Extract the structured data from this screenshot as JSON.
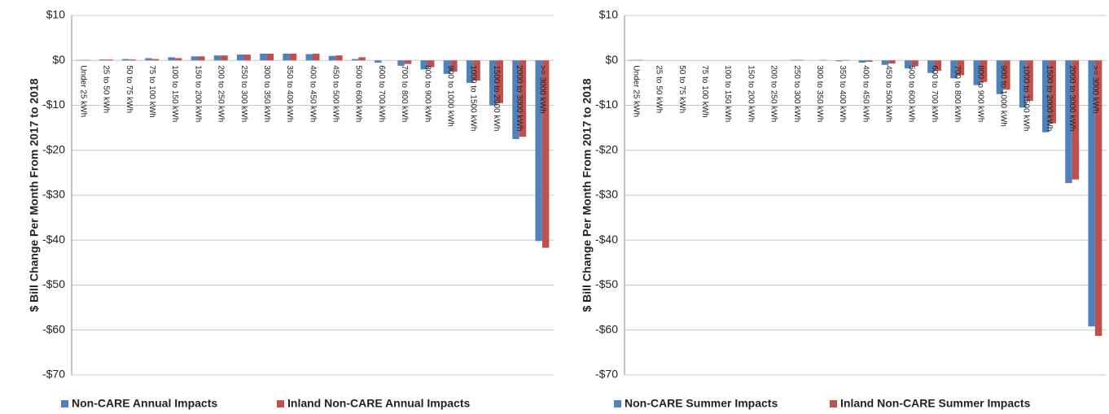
{
  "chart_data": [
    {
      "type": "bar",
      "y_label": "$ Bill  Change Per Month From 2017 to 2018",
      "categories": [
        "Under 25 kWh",
        "25 to 50 kWh",
        "50 to 75 kWh",
        "75 to 100 kWh",
        "100 to 150 kWh",
        "150 to 200 kWh",
        "200 to 250 kWh",
        "250 to 300 kWh",
        "300 to 350 kWh",
        "350 to 400 kWh",
        "400 to 450 kWh",
        "450 to 500 kWh",
        "500 to 600 kWh",
        "600 to 700 kWh",
        "700 to 800 kWh",
        "800 to 900 kWh",
        "900 to 1000 kWh",
        "1000 to 1500 kWh",
        "1500 to 2000 kWh",
        "2000 to 3000 kWh",
        ">= 3000 kWh"
      ],
      "series": [
        {
          "name": "Non-CARE Annual Impacts",
          "color": "#4f81bd",
          "values": [
            0.1,
            0.2,
            0.3,
            0.5,
            0.7,
            0.9,
            1.1,
            1.3,
            1.5,
            1.5,
            1.4,
            1.0,
            0.3,
            -0.5,
            -1.2,
            -2.0,
            -3.0,
            -5.0,
            -10.0,
            -17.5,
            -40.2
          ]
        },
        {
          "name": "Inland Non-CARE Annual Impacts",
          "color": "#c0504d",
          "values": [
            0.1,
            0.2,
            0.2,
            0.3,
            0.5,
            0.9,
            1.1,
            1.3,
            1.5,
            1.5,
            1.5,
            1.1,
            0.7,
            0,
            -0.8,
            -1.5,
            -2.5,
            -4.5,
            -9.5,
            -17.0,
            -41.7
          ]
        }
      ],
      "ylim": [
        -70,
        10
      ],
      "yticks": [
        {
          "value": 10,
          "label": "$10"
        },
        {
          "value": 0,
          "label": "$0"
        },
        {
          "value": -10,
          "label": "-$10"
        },
        {
          "value": -20,
          "label": "-$20"
        },
        {
          "value": -30,
          "label": "-$30"
        },
        {
          "value": -40,
          "label": "-$40"
        },
        {
          "value": -50,
          "label": "-$50"
        },
        {
          "value": -60,
          "label": "-$60"
        },
        {
          "value": -70,
          "label": "-$70"
        }
      ],
      "grid": true,
      "legend": "bottom"
    },
    {
      "type": "bar",
      "y_label": "$ Bill  Change Per Month From 2017 to 2018",
      "categories": [
        "Under 25 kWh",
        "25 to 50 kWh",
        "50 to 75 kWh",
        "75 to 100 kWh",
        "100 to 150 kWh",
        "150 to 200 kWh",
        "200 to 250 kWh",
        "250 to 300 kWh",
        "300 to 350 kWh",
        "350 to 400 kWh",
        "400 to 450 kWh",
        "450 to 500 kWh",
        "500 to 600 kWh",
        "600 to 700 kWh",
        "700 to 800 kWh",
        "800 to 900 kWh",
        "900 to 1000 kWh",
        "1000 to 1500 kWh",
        "1500 to 2000 kWh",
        "2000 to 3000 kWh",
        ">= 3000 kWh"
      ],
      "series": [
        {
          "name": "Non-CARE Summer Impacts",
          "color": "#4f81bd",
          "values": [
            0.1,
            0,
            0,
            0,
            0,
            0,
            0,
            0.1,
            0,
            -0.2,
            -0.5,
            -1.0,
            -1.8,
            -2.8,
            -4.0,
            -5.5,
            -7.5,
            -10.5,
            -16.0,
            -27.3,
            -59.2
          ]
        },
        {
          "name": "Inland Non-CARE Summer Impacts",
          "color": "#c0504d",
          "values": [
            0.1,
            0,
            0,
            0,
            0,
            0,
            0,
            0.1,
            0.1,
            0.1,
            -0.3,
            -0.7,
            -1.3,
            -2.3,
            -3.3,
            -4.8,
            -6.5,
            -9.0,
            -14.0,
            -26.5,
            -61.3
          ]
        }
      ],
      "ylim": [
        -70,
        10
      ],
      "yticks": [
        {
          "value": 10,
          "label": "$10"
        },
        {
          "value": 0,
          "label": "$0"
        },
        {
          "value": -10,
          "label": "-$10"
        },
        {
          "value": -20,
          "label": "-$20"
        },
        {
          "value": -30,
          "label": "-$30"
        },
        {
          "value": -40,
          "label": "-$40"
        },
        {
          "value": -50,
          "label": "-$50"
        },
        {
          "value": -60,
          "label": "-$60"
        },
        {
          "value": -70,
          "label": "-$70"
        }
      ],
      "grid": true,
      "legend": "bottom"
    }
  ]
}
